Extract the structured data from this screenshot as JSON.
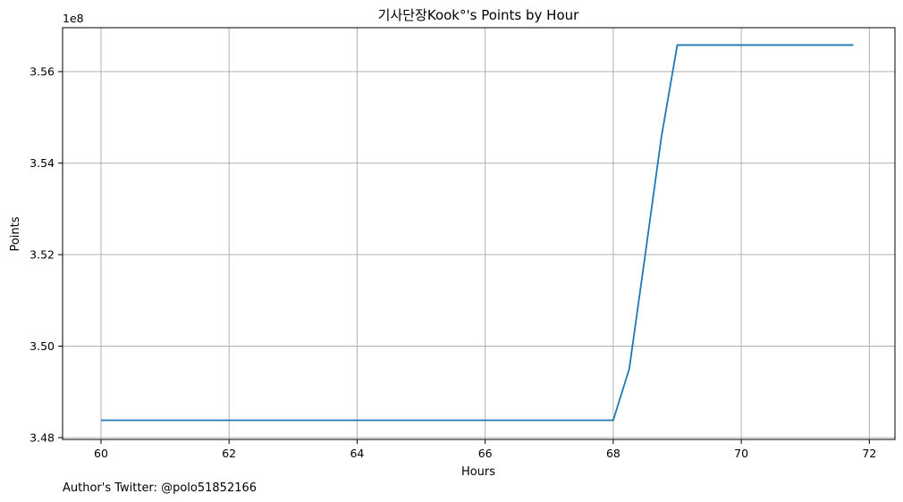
{
  "chart_data": {
    "type": "line",
    "title": "기사단장Kook°'s Points by Hour",
    "xlabel": "Hours",
    "ylabel": "Points",
    "offset_text": "1e8",
    "footer": "Author's Twitter: @polo51852166",
    "xlim": [
      59.4,
      72.4
    ],
    "ylim": [
      3.4796,
      3.5696
    ],
    "scale": 100000000,
    "x_ticks": [
      60,
      62,
      64,
      66,
      68,
      70,
      72
    ],
    "x_tick_labels": [
      "60",
      "62",
      "64",
      "66",
      "68",
      "70",
      "72"
    ],
    "y_ticks": [
      3.48,
      3.5,
      3.52,
      3.54,
      3.56
    ],
    "y_tick_labels": [
      "3.48",
      "3.50",
      "3.52",
      "3.54",
      "3.56"
    ],
    "grid": true,
    "series": [
      {
        "name": "Points",
        "color": "#1f77b4",
        "x": [
          60,
          60.25,
          60.5,
          60.75,
          61,
          61.25,
          61.5,
          61.75,
          62,
          62.25,
          62.5,
          62.75,
          63,
          63.25,
          63.5,
          63.75,
          64,
          64.25,
          64.5,
          64.75,
          65,
          65.25,
          65.5,
          65.75,
          66,
          66.25,
          66.5,
          66.75,
          67,
          67.25,
          67.5,
          67.75,
          68,
          68.25,
          68.5,
          68.75,
          69,
          69.25,
          69.5,
          69.75,
          70,
          70.25,
          70.5,
          70.75,
          71,
          71.25,
          71.5,
          71.75
        ],
        "y": [
          3.4838,
          3.4838,
          3.4838,
          3.4838,
          3.4838,
          3.4838,
          3.4838,
          3.4838,
          3.4838,
          3.4838,
          3.4838,
          3.4838,
          3.4838,
          3.4838,
          3.4838,
          3.4838,
          3.4838,
          3.4838,
          3.4838,
          3.4838,
          3.4838,
          3.4838,
          3.4838,
          3.4838,
          3.4838,
          3.4838,
          3.4838,
          3.4838,
          3.4838,
          3.4838,
          3.4838,
          3.4838,
          3.4838,
          3.495,
          3.52,
          3.5455,
          3.5658,
          3.5658,
          3.5658,
          3.5658,
          3.5658,
          3.5658,
          3.5658,
          3.5658,
          3.5658,
          3.5658,
          3.5658,
          3.5658
        ]
      }
    ]
  }
}
